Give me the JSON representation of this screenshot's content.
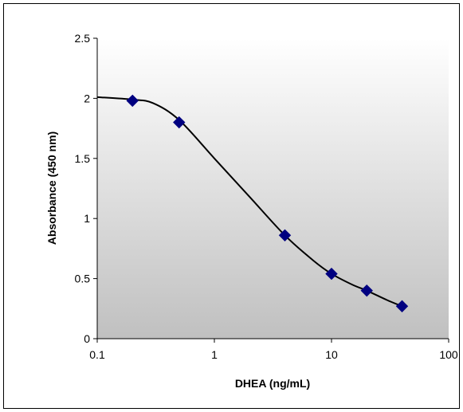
{
  "chart_data": {
    "type": "scatter",
    "xlabel": "DHEA (ng/mL)",
    "ylabel": "Absorbance (450 nm)",
    "x_scale": "log",
    "xlim": [
      0.1,
      100
    ],
    "ylim": [
      0,
      2.5
    ],
    "x_ticks": [
      "0.1",
      "1",
      "10",
      "100"
    ],
    "y_ticks": [
      "0",
      "0.5",
      "1",
      "1.5",
      "2",
      "2.5"
    ],
    "grid": false,
    "points": [
      {
        "x": 0.2,
        "y": 1.98
      },
      {
        "x": 0.5,
        "y": 1.8
      },
      {
        "x": 4,
        "y": 0.86
      },
      {
        "x": 10,
        "y": 0.54
      },
      {
        "x": 20,
        "y": 0.4
      },
      {
        "x": 40,
        "y": 0.27
      }
    ],
    "fit_curve": [
      {
        "x": 0.1,
        "y": 2.01
      },
      {
        "x": 0.2,
        "y": 1.99
      },
      {
        "x": 0.3,
        "y": 1.96
      },
      {
        "x": 0.5,
        "y": 1.82
      },
      {
        "x": 1,
        "y": 1.5
      },
      {
        "x": 2,
        "y": 1.18
      },
      {
        "x": 4,
        "y": 0.86
      },
      {
        "x": 7,
        "y": 0.65
      },
      {
        "x": 10,
        "y": 0.54
      },
      {
        "x": 15,
        "y": 0.45
      },
      {
        "x": 20,
        "y": 0.4
      },
      {
        "x": 30,
        "y": 0.32
      },
      {
        "x": 40,
        "y": 0.27
      }
    ],
    "colors": {
      "marker": "#000080",
      "curve": "#000000",
      "plot_bg_top": "#ffffff",
      "plot_bg_bottom": "#c0c0c0"
    }
  }
}
